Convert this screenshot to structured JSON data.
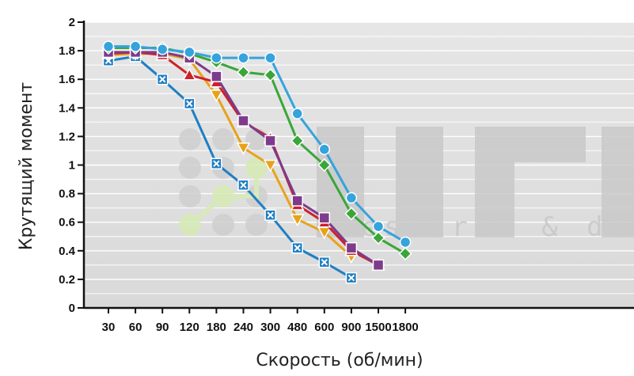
{
  "chart_data": {
    "type": "line",
    "title": "",
    "xlabel": "Скорость (об/мин)",
    "ylabel": "Крутящий момент",
    "categories": [
      "30",
      "60",
      "90",
      "120",
      "180",
      "240",
      "300",
      "480",
      "600",
      "900",
      "1500",
      "1800"
    ],
    "yticks": [
      "0",
      "0.2",
      "0.4",
      "0.6",
      "0.8",
      "1",
      "1.2",
      "1.4",
      "1.6",
      "1.8",
      "2"
    ],
    "ylim": [
      0,
      2
    ],
    "grid": true,
    "legend": "none",
    "series": [
      {
        "color": "#1e7fc4",
        "marker": "x-square",
        "values": [
          1.73,
          1.76,
          1.6,
          1.43,
          1.01,
          0.86,
          0.65,
          0.42,
          0.32,
          0.21,
          null,
          null
        ]
      },
      {
        "color": "#e8a21a",
        "marker": "triangle-down",
        "values": [
          1.77,
          1.78,
          1.78,
          1.74,
          1.49,
          1.12,
          1.0,
          0.62,
          0.53,
          0.36,
          null,
          null
        ]
      },
      {
        "color": "#cc2229",
        "marker": "triangle",
        "values": [
          1.78,
          1.79,
          1.77,
          1.63,
          1.58,
          1.3,
          1.19,
          0.72,
          0.6,
          0.4,
          0.3,
          null
        ]
      },
      {
        "color": "#7e3b8c",
        "marker": "square",
        "values": [
          1.79,
          1.79,
          1.79,
          1.75,
          1.62,
          1.31,
          1.17,
          0.75,
          0.63,
          0.42,
          0.3,
          null
        ]
      },
      {
        "color": "#3aa63a",
        "marker": "diamond",
        "values": [
          1.82,
          1.82,
          1.82,
          1.78,
          1.72,
          1.65,
          1.63,
          1.17,
          1.0,
          0.66,
          0.49,
          0.38
        ]
      },
      {
        "color": "#35a3dc",
        "marker": "circle",
        "values": [
          1.83,
          1.83,
          1.81,
          1.79,
          1.75,
          1.75,
          1.75,
          1.36,
          1.11,
          0.77,
          0.57,
          0.46
        ]
      }
    ]
  },
  "watermark": {
    "text": "research & dev"
  }
}
